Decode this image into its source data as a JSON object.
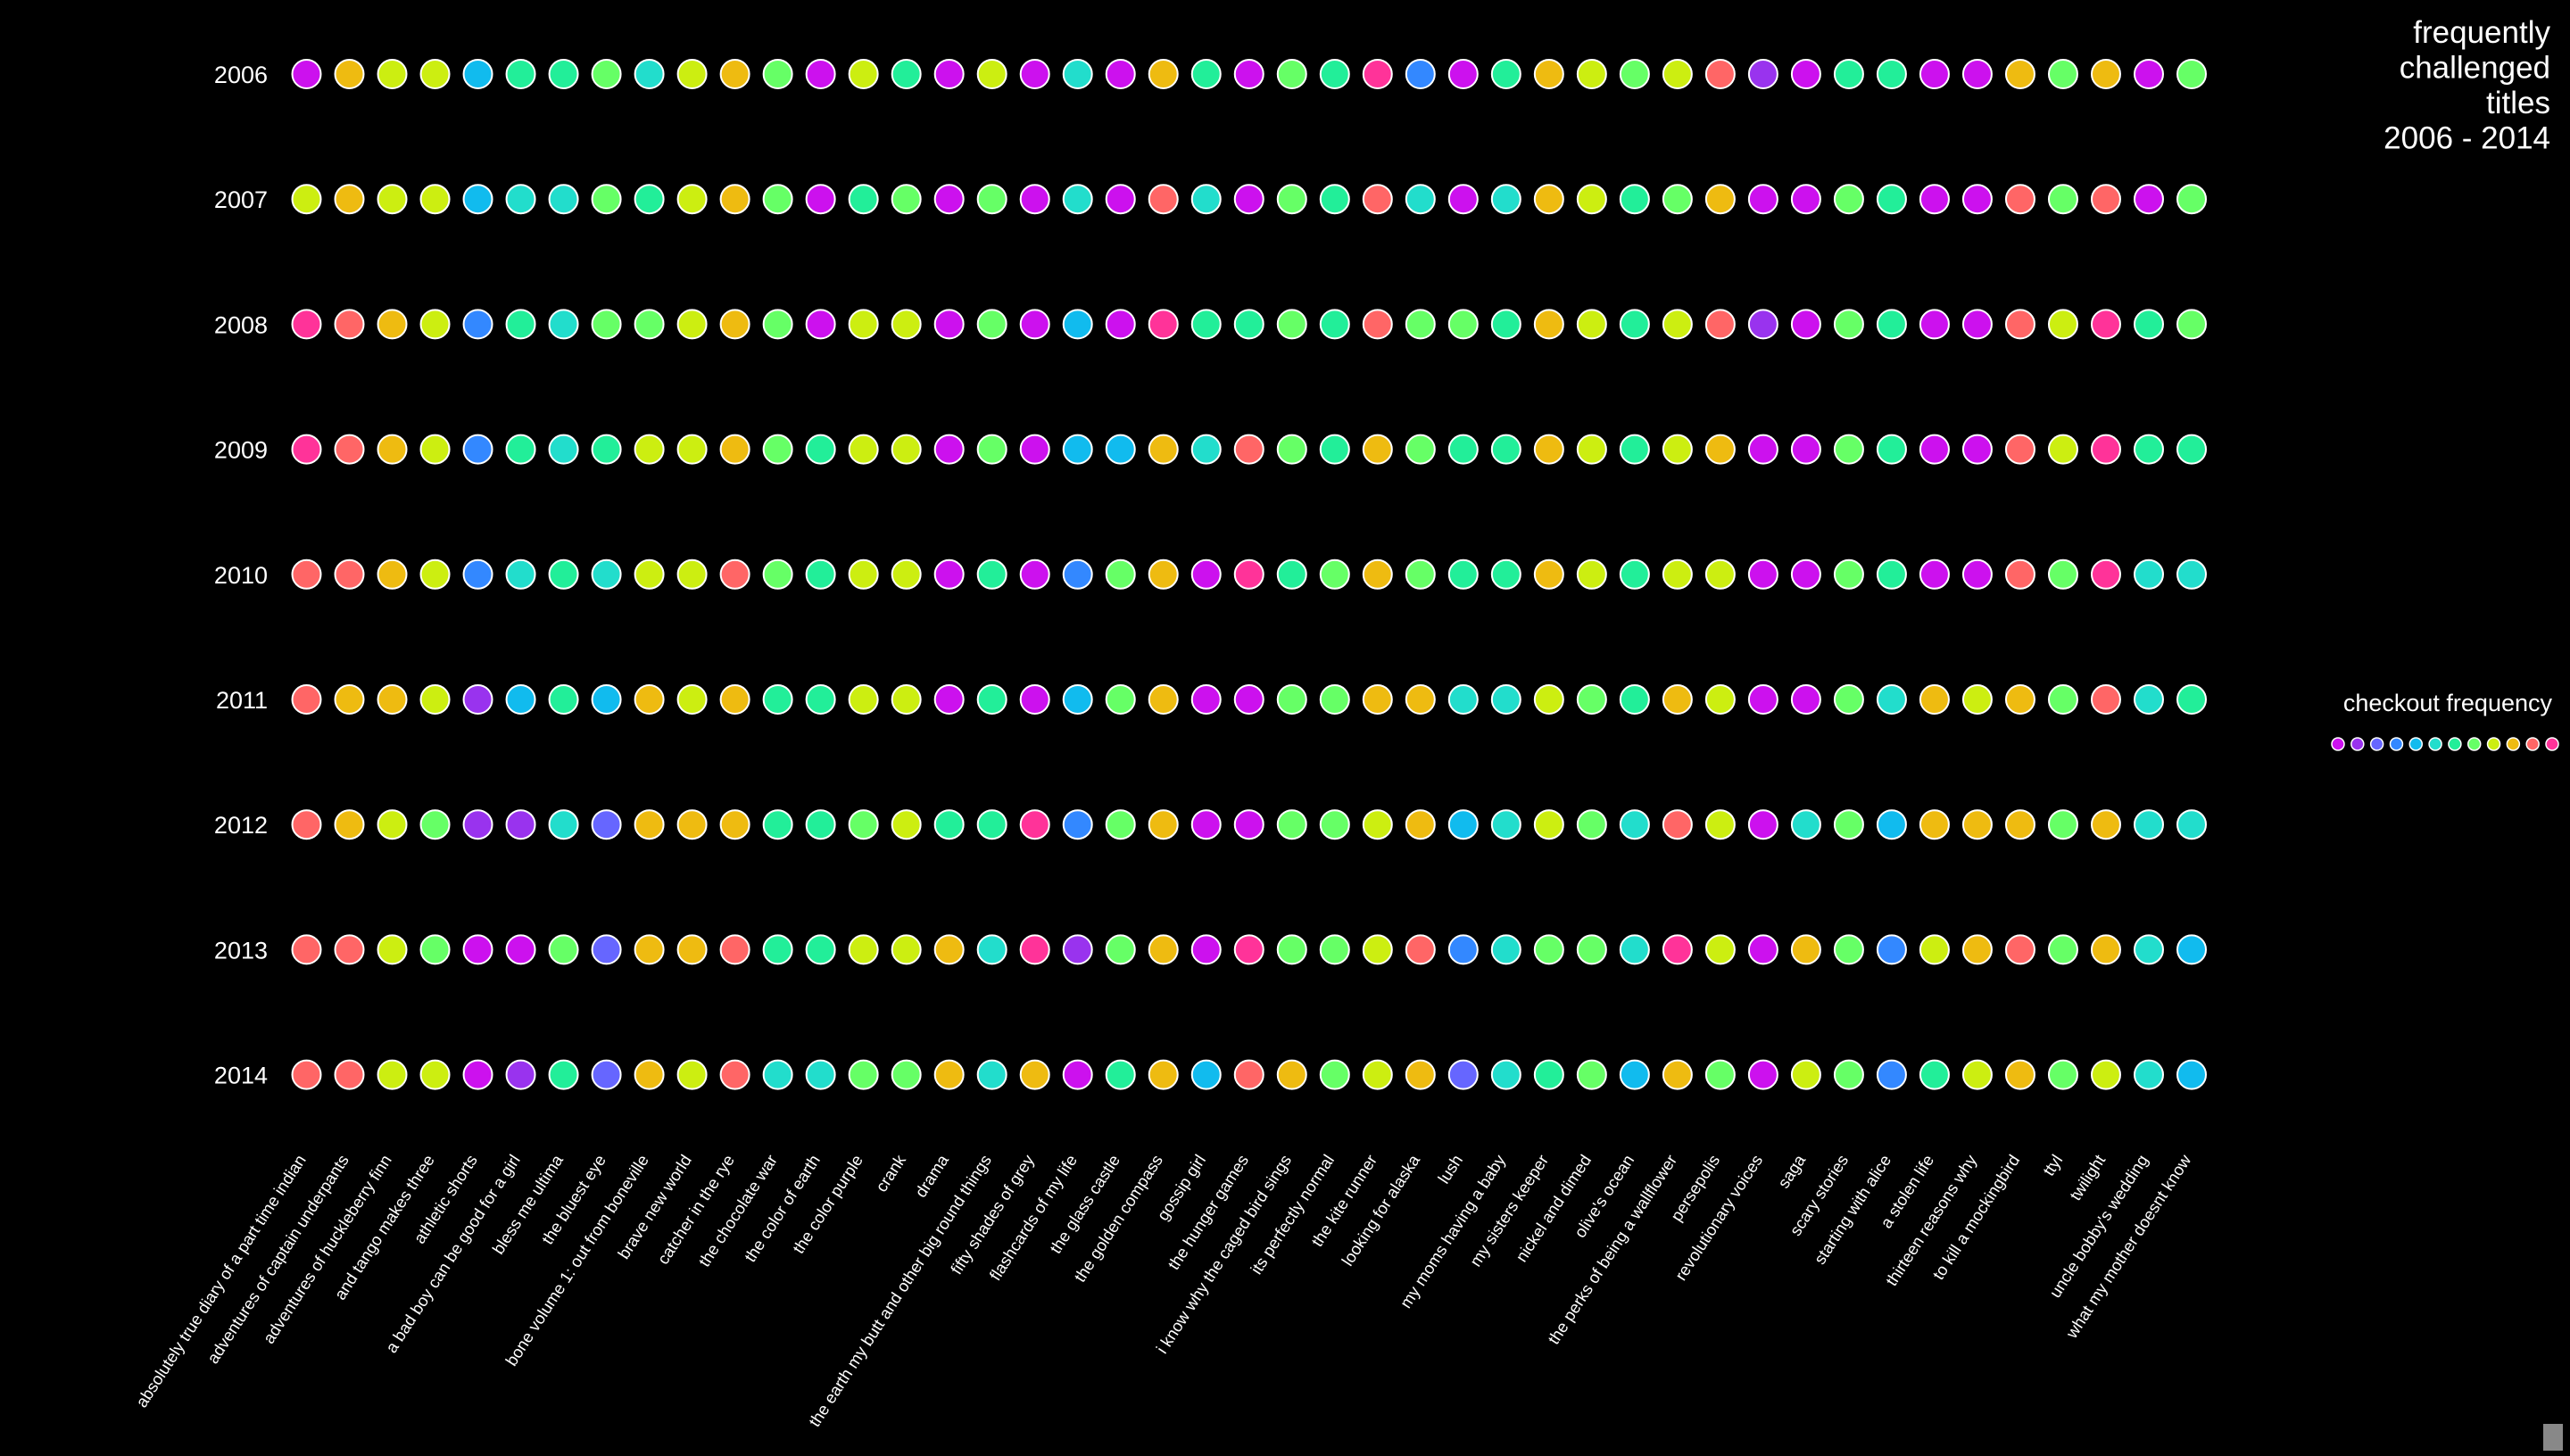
{
  "chart_data": {
    "type": "dot-matrix",
    "title": [
      "frequently",
      "challenged",
      "titles",
      "2006 - 2014"
    ],
    "legend_title": "checkout frequency",
    "palette": [
      "#cc11ee",
      "#9933ee",
      "#6666ff",
      "#3388ff",
      "#11bbee",
      "#22ddcc",
      "#22ee99",
      "#66ff66",
      "#ccee11",
      "#eebb11",
      "#ff6666",
      "#ff3399"
    ],
    "categories": [
      "absolutely true diary of a part time indian",
      "adventures of captain underpants",
      "adventures of huckleberry finn",
      "and tango makes three",
      "athletic shorts",
      "a bad boy can be good for a girl",
      "bless me ultima",
      "the bluest eye",
      "bone volume 1: out from boneville",
      "brave new world",
      "catcher in the rye",
      "the chocolate war",
      "the color of earth",
      "the color purple",
      "crank",
      "drama",
      "the earth my butt and other big round things",
      "fifty shades of grey",
      "flashcards of my life",
      "the glass castle",
      "the golden compass",
      "gossip girl",
      "the hunger games",
      "i know why the caged bird sings",
      "its perfectly normal",
      "the kite runner",
      "looking for alaska",
      "lush",
      "my moms having a baby",
      "my sisters keeper",
      "nickel and dimed",
      "olive's ocean",
      "the perks of being a wallflower",
      "persepolis",
      "revolutionary voices",
      "saga",
      "scary stories",
      "starting with alice",
      "a stolen life",
      "thirteen reasons why",
      "to kill a mockingbird",
      "ttyl",
      "twilight",
      "uncle bobby's wedding",
      "what my mother doesnt know"
    ],
    "series": [
      {
        "name": "2006",
        "values": [
          0,
          9,
          8,
          8,
          4,
          6,
          6,
          7,
          5,
          8,
          9,
          7,
          0,
          8,
          6,
          0,
          8,
          0,
          5,
          0,
          9,
          6,
          0,
          7,
          6,
          11,
          3,
          0,
          6,
          9,
          8,
          7,
          8,
          10,
          1,
          0,
          6,
          6,
          0,
          0,
          9,
          7,
          9,
          0,
          7
        ]
      },
      {
        "name": "2007",
        "values": [
          8,
          9,
          8,
          8,
          4,
          5,
          5,
          7,
          6,
          8,
          9,
          7,
          0,
          6,
          7,
          0,
          7,
          0,
          5,
          0,
          10,
          5,
          0,
          7,
          6,
          10,
          5,
          0,
          5,
          9,
          8,
          6,
          7,
          9,
          0,
          0,
          7,
          6,
          0,
          0,
          10,
          7,
          10,
          0,
          7
        ]
      },
      {
        "name": "2008",
        "values": [
          11,
          10,
          9,
          8,
          3,
          6,
          5,
          7,
          7,
          8,
          9,
          7,
          0,
          8,
          8,
          0,
          7,
          0,
          4,
          0,
          11,
          6,
          6,
          7,
          6,
          10,
          7,
          7,
          6,
          9,
          8,
          6,
          8,
          10,
          1,
          0,
          7,
          6,
          0,
          0,
          10,
          8,
          11,
          6,
          7
        ]
      },
      {
        "name": "2009",
        "values": [
          11,
          10,
          9,
          8,
          3,
          6,
          5,
          6,
          8,
          8,
          9,
          7,
          6,
          8,
          8,
          0,
          7,
          0,
          4,
          4,
          9,
          5,
          10,
          7,
          6,
          9,
          7,
          6,
          6,
          9,
          8,
          6,
          8,
          9,
          0,
          0,
          7,
          6,
          0,
          0,
          10,
          8,
          11,
          6,
          6
        ]
      },
      {
        "name": "2010",
        "values": [
          10,
          10,
          9,
          8,
          3,
          5,
          6,
          5,
          8,
          8,
          10,
          7,
          6,
          8,
          8,
          0,
          6,
          0,
          3,
          7,
          9,
          0,
          11,
          6,
          7,
          9,
          7,
          6,
          6,
          9,
          8,
          6,
          8,
          8,
          0,
          0,
          7,
          6,
          0,
          0,
          10,
          7,
          11,
          5,
          5
        ]
      },
      {
        "name": "2011",
        "values": [
          10,
          9,
          9,
          8,
          1,
          4,
          6,
          4,
          9,
          8,
          9,
          6,
          6,
          8,
          8,
          0,
          6,
          0,
          4,
          7,
          9,
          0,
          0,
          7,
          7,
          9,
          9,
          5,
          5,
          8,
          7,
          6,
          9,
          8,
          0,
          0,
          7,
          5,
          9,
          8,
          9,
          7,
          10,
          5,
          6
        ]
      },
      {
        "name": "2012",
        "values": [
          10,
          9,
          8,
          7,
          1,
          1,
          5,
          2,
          9,
          9,
          9,
          6,
          6,
          7,
          8,
          6,
          6,
          11,
          3,
          7,
          9,
          0,
          0,
          7,
          7,
          8,
          9,
          4,
          5,
          8,
          7,
          5,
          10,
          8,
          0,
          5,
          7,
          4,
          9,
          9,
          9,
          7,
          9,
          5,
          5
        ]
      },
      {
        "name": "2013",
        "values": [
          10,
          10,
          8,
          7,
          0,
          0,
          7,
          2,
          9,
          9,
          10,
          6,
          6,
          8,
          8,
          9,
          5,
          11,
          1,
          7,
          9,
          0,
          11,
          7,
          7,
          8,
          10,
          3,
          5,
          7,
          7,
          5,
          11,
          8,
          0,
          9,
          7,
          3,
          8,
          9,
          10,
          7,
          9,
          5,
          4
        ]
      },
      {
        "name": "2014",
        "values": [
          10,
          10,
          8,
          8,
          0,
          1,
          6,
          2,
          9,
          8,
          10,
          5,
          5,
          7,
          7,
          9,
          5,
          9,
          0,
          6,
          9,
          4,
          10,
          9,
          7,
          8,
          9,
          2,
          5,
          6,
          7,
          4,
          9,
          7,
          0,
          8,
          7,
          3,
          6,
          8,
          9,
          7,
          8,
          5,
          4
        ]
      }
    ]
  }
}
